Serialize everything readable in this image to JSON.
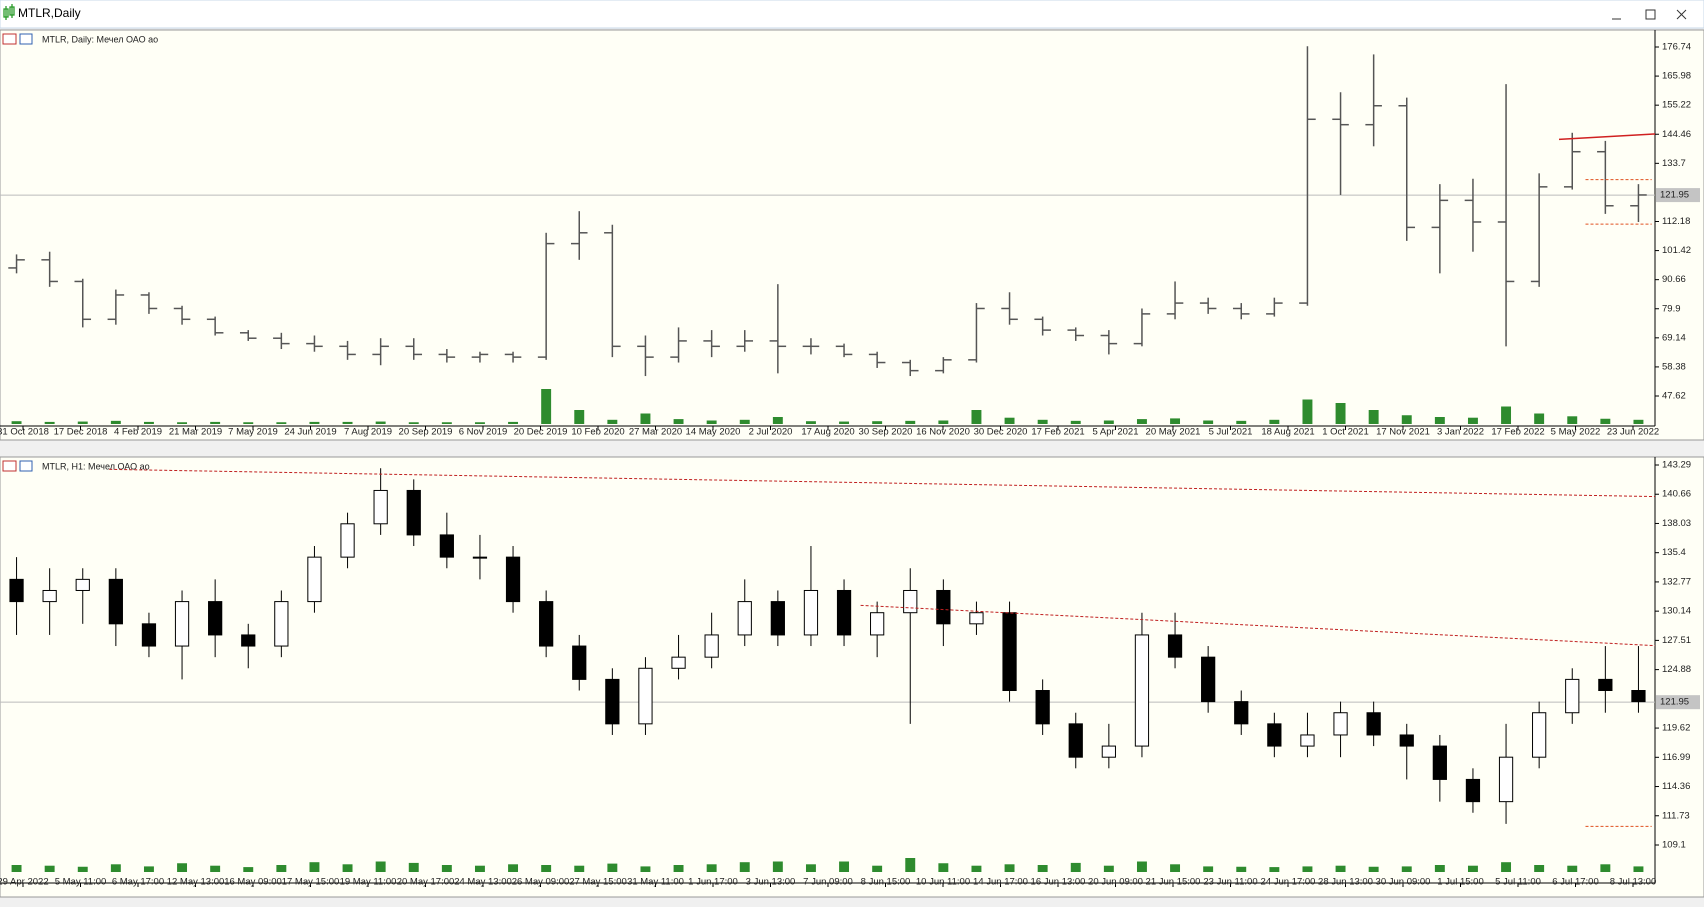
{
  "window": {
    "title": "MTLR,Daily"
  },
  "chart_data": [
    {
      "type": "ohlc",
      "title": "MTLR, Daily:  Мечел ОАО ао",
      "color": "#555555",
      "volume_color": "#2e8b2e",
      "open": [
        95,
        98,
        90,
        76,
        85,
        80,
        76,
        71,
        69,
        67,
        66,
        63,
        66,
        63,
        62,
        63,
        62,
        104,
        108,
        66,
        62,
        68,
        66,
        68,
        66,
        66,
        63,
        60,
        57,
        61,
        80,
        76,
        72,
        70,
        67,
        78,
        82,
        80,
        78,
        82,
        150,
        148,
        155,
        110,
        120,
        112,
        90,
        125,
        138,
        118
      ],
      "high": [
        100,
        101,
        91,
        87,
        86,
        81,
        77,
        72,
        71,
        70,
        68,
        69,
        69,
        65,
        64,
        64,
        108,
        116,
        111,
        70,
        73,
        72,
        72,
        89,
        69,
        67,
        64,
        61,
        62,
        82,
        86,
        77,
        73,
        72,
        80,
        90,
        84,
        82,
        84,
        177,
        160,
        174,
        158,
        126,
        128,
        163,
        130,
        145,
        142,
        126
      ],
      "low": [
        93,
        88,
        73,
        74,
        78,
        74,
        70,
        68,
        65,
        64,
        61,
        59,
        61,
        60,
        60,
        60,
        61,
        98,
        62,
        55,
        60,
        62,
        64,
        56,
        63,
        62,
        58,
        55,
        56,
        60,
        74,
        70,
        68,
        63,
        66,
        76,
        78,
        76,
        77,
        81,
        122,
        140,
        105,
        93,
        101,
        66,
        88,
        124,
        115,
        112
      ],
      "close": [
        98,
        90,
        76,
        85,
        80,
        76,
        71,
        69,
        67,
        66,
        63,
        66,
        63,
        62,
        63,
        62,
        104,
        108,
        66,
        62,
        68,
        66,
        68,
        66,
        66,
        63,
        60,
        57,
        61,
        80,
        76,
        72,
        70,
        67,
        78,
        82,
        80,
        78,
        82,
        150,
        148,
        155,
        110,
        120,
        112,
        90,
        125,
        138,
        118,
        122
      ],
      "volume": [
        8,
        6,
        7,
        9,
        6,
        5,
        6,
        5,
        5,
        6,
        6,
        7,
        5,
        5,
        5,
        6,
        100,
        40,
        12,
        30,
        14,
        10,
        12,
        20,
        8,
        7,
        8,
        9,
        10,
        40,
        18,
        12,
        9,
        10,
        14,
        16,
        10,
        9,
        12,
        70,
        60,
        40,
        25,
        20,
        18,
        50,
        30,
        22,
        15,
        12
      ],
      "xlabels": [
        "31 Oct 2018",
        "17 Dec 2018",
        "4 Feb 2019",
        "21 Mar 2019",
        "7 May 2019",
        "24 Jun 2019",
        "7 Aug 2019",
        "20 Sep 2019",
        "6 Nov 2019",
        "20 Dec 2019",
        "10 Feb 2020",
        "27 Mar 2020",
        "14 May 2020",
        "2 Jul 2020",
        "17 Aug 2020",
        "30 Sep 2020",
        "16 Nov 2020",
        "30 Dec 2020",
        "17 Feb 2021",
        "5 Apr 2021",
        "20 May 2021",
        "5 Jul 2021",
        "18 Aug 2021",
        "1 Oct 2021",
        "17 Nov 2021",
        "3 Jan 2022",
        "17 Feb 2022",
        "5 May 2022",
        "23 Jun 2022"
      ],
      "ylim": [
        37.26,
        180.07
      ],
      "yticks": [
        176.74,
        165.98,
        155.22,
        144.46,
        133.7,
        112.18,
        101.42,
        90.66,
        79.9,
        69.14,
        58.38,
        47.62
      ],
      "current_price": 121.95,
      "trendlines": [
        {
          "from": [
            47.1,
            142.56
          ],
          "to": [
            50,
            144.57
          ],
          "dash": false,
          "color": "#d02020"
        },
        {
          "from": [
            47.9,
            127.68
          ],
          "to": [
            49.9,
            127.68
          ],
          "dash": true,
          "color": "#e05020"
        },
        {
          "from": [
            47.9,
            111.2
          ],
          "to": [
            49.9,
            111.2
          ],
          "dash": true,
          "color": "#e05020"
        }
      ]
    },
    {
      "type": "candlestick",
      "title": "MTLR, H1:  Мечел ОАО ао",
      "color": "#000000",
      "volume_color": "#2e8b2e",
      "open": [
        133,
        131,
        132,
        133,
        129,
        127,
        131,
        128,
        127,
        131,
        135,
        138,
        141,
        137,
        135,
        135,
        131,
        127,
        124,
        120,
        125,
        126,
        128,
        131,
        128,
        132,
        128,
        130,
        132,
        129,
        130,
        123,
        120,
        117,
        118,
        128,
        126,
        122,
        120,
        118,
        119,
        121,
        119,
        118,
        115,
        113,
        117,
        121,
        124,
        123
      ],
      "high": [
        135,
        134,
        134,
        134,
        130,
        132,
        133,
        129,
        132,
        136,
        139,
        143,
        142,
        139,
        137,
        136,
        132,
        128,
        125,
        126,
        128,
        130,
        133,
        132,
        136,
        133,
        131,
        134,
        133,
        131,
        131,
        124,
        121,
        120,
        130,
        130,
        127,
        123,
        121,
        121,
        122,
        122,
        120,
        119,
        116,
        120,
        122,
        125,
        127,
        127
      ],
      "low": [
        128,
        128,
        129,
        127,
        126,
        124,
        126,
        125,
        126,
        130,
        134,
        137,
        136,
        134,
        133,
        130,
        126,
        123,
        119,
        119,
        124,
        125,
        127,
        127,
        127,
        127,
        126,
        120,
        127,
        128,
        122,
        119,
        116,
        116,
        117,
        125,
        121,
        119,
        117,
        117,
        117,
        118,
        115,
        113,
        112,
        111,
        116,
        120,
        121,
        121
      ],
      "close": [
        131,
        132,
        133,
        129,
        127,
        131,
        128,
        127,
        131,
        135,
        138,
        141,
        137,
        135,
        135,
        131,
        127,
        124,
        120,
        125,
        126,
        128,
        131,
        128,
        132,
        128,
        130,
        132,
        129,
        130,
        123,
        120,
        117,
        118,
        128,
        126,
        122,
        120,
        118,
        119,
        121,
        119,
        118,
        115,
        113,
        117,
        121,
        124,
        123,
        122
      ],
      "volume": [
        20,
        18,
        15,
        22,
        16,
        25,
        18,
        14,
        20,
        28,
        22,
        30,
        26,
        20,
        18,
        22,
        20,
        18,
        24,
        16,
        20,
        22,
        28,
        30,
        22,
        30,
        18,
        40,
        25,
        18,
        22,
        20,
        26,
        18,
        30,
        22,
        16,
        15,
        14,
        16,
        18,
        15,
        16,
        20,
        18,
        28,
        20,
        18,
        22,
        16
      ],
      "xlabels": [
        "29 Apr 2022",
        "5 May 11:00",
        "6 May 17:00",
        "12 May 13:00",
        "16 May 09:00",
        "17 May 15:00",
        "19 May 11:00",
        "20 May 17:00",
        "24 May 13:00",
        "26 May 09:00",
        "27 May 15:00",
        "31 May 11:00",
        "1 Jun 17:00",
        "3 Jun 13:00",
        "7 Jun 09:00",
        "8 Jun 15:00",
        "10 Jun 11:00",
        "14 Jun 17:00",
        "16 Jun 13:00",
        "20 Jun 09:00",
        "21 Jun 15:00",
        "23 Jun 11:00",
        "24 Jun 17:00",
        "28 Jun 13:00",
        "30 Jun 09:00",
        "1 Jul 15:00",
        "5 Jul 11:00",
        "6 Jul 17:00",
        "8 Jul 13:00"
      ],
      "ylim": [
        106.67,
        143.74
      ],
      "yticks": [
        143.29,
        140.66,
        138.03,
        135.4,
        132.77,
        130.14,
        127.51,
        124.88,
        119.62,
        116.99,
        114.36,
        111.73,
        109.1
      ],
      "current_price": 121.95,
      "trendlines": [
        {
          "from": [
            3.3,
            142.9
          ],
          "to": [
            50,
            140.45
          ],
          "dash": true,
          "color": "#c02020"
        },
        {
          "from": [
            26,
            130.66
          ],
          "to": [
            50,
            127.04
          ],
          "dash": true,
          "color": "#c02020"
        },
        {
          "from": [
            47.9,
            110.77
          ],
          "to": [
            49.9,
            110.77
          ],
          "dash": true,
          "color": "#e05020"
        }
      ]
    }
  ]
}
